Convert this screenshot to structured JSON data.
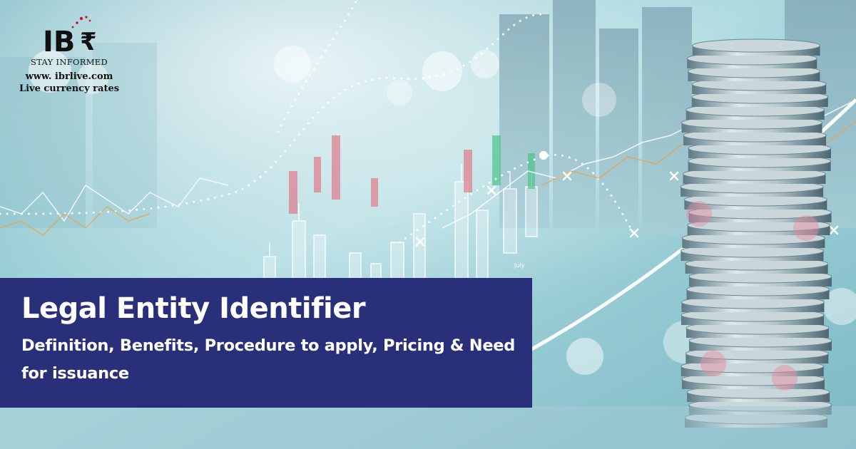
{
  "logo": {
    "mark_letters": "IB",
    "currency_symbol": "₹",
    "tagline": "STAY INFORMED",
    "url": "www. ibrlive.com",
    "subtext": "Live currency rates",
    "icon": "rupee-logo-icon",
    "brand_color": "#c8102e"
  },
  "banner": {
    "title": "Legal Entity Identifier",
    "subtitle": "Definition, Benefits, Procedure to apply, Pricing & Need for issuance",
    "background_color": "#2a2f7a",
    "text_color": "#ffffff"
  },
  "background": {
    "chart_label": "July",
    "theme": "financial-stock-chart-coins",
    "icons": [
      "candlestick-chart-icon",
      "coin-stack-icon",
      "trend-line-icon"
    ]
  }
}
